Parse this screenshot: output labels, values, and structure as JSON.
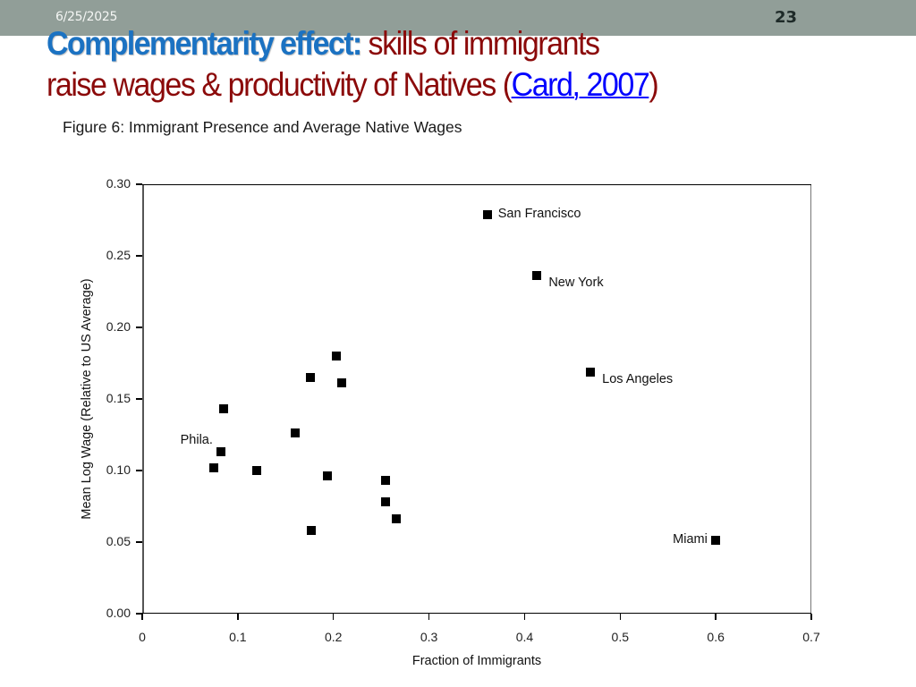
{
  "header": {
    "date": "6/25/2025",
    "slide_number": "23",
    "bar_color": "#919E98"
  },
  "title": {
    "accent": "Complementarity effect:",
    "line1_rest": " skills of immigrants",
    "line2_prefix": "raise wages & productivity of Natives (",
    "link_text": "Card, 2007",
    "line2_suffix": ")",
    "accent_color": "#1B72C2",
    "text_color": "#8B0A0A",
    "link_color": "#0000FF"
  },
  "figure": {
    "caption": "Figure 6: Immigrant Presence and Average Native Wages"
  },
  "chart_data": {
    "type": "scatter",
    "title": "Figure 6: Immigrant Presence and Average Native Wages",
    "xlabel": "Fraction of Immigrants",
    "ylabel": "Mean Log Wage (Relative to US Average)",
    "xlim": [
      0,
      0.7
    ],
    "ylim": [
      0.0,
      0.3
    ],
    "xticks": [
      "0",
      "0.1",
      "0.2",
      "0.3",
      "0.4",
      "0.5",
      "0.6",
      "0.7"
    ],
    "yticks": [
      "0.00",
      "0.05",
      "0.10",
      "0.15",
      "0.20",
      "0.25",
      "0.30"
    ],
    "grid": false,
    "legend": null,
    "marker": "square",
    "points": [
      {
        "x": 0.361,
        "y": 0.279,
        "label": "San Francisco"
      },
      {
        "x": 0.413,
        "y": 0.236,
        "label": "New York"
      },
      {
        "x": 0.469,
        "y": 0.169,
        "label": "Los Angeles"
      },
      {
        "x": 0.6,
        "y": 0.051,
        "label": "Miami"
      },
      {
        "x": 0.082,
        "y": 0.113,
        "label": "Phila."
      },
      {
        "x": 0.203,
        "y": 0.18,
        "label": ""
      },
      {
        "x": 0.176,
        "y": 0.165,
        "label": ""
      },
      {
        "x": 0.209,
        "y": 0.161,
        "label": ""
      },
      {
        "x": 0.085,
        "y": 0.143,
        "label": ""
      },
      {
        "x": 0.16,
        "y": 0.126,
        "label": ""
      },
      {
        "x": 0.075,
        "y": 0.102,
        "label": ""
      },
      {
        "x": 0.12,
        "y": 0.1,
        "label": ""
      },
      {
        "x": 0.194,
        "y": 0.096,
        "label": ""
      },
      {
        "x": 0.255,
        "y": 0.093,
        "label": ""
      },
      {
        "x": 0.255,
        "y": 0.078,
        "label": ""
      },
      {
        "x": 0.266,
        "y": 0.066,
        "label": ""
      },
      {
        "x": 0.177,
        "y": 0.058,
        "label": ""
      }
    ],
    "label_placement": {
      "San Francisco": "right",
      "New York": "right-below",
      "Los Angeles": "right-below",
      "Miami": "left",
      "Phila.": "left-above"
    }
  }
}
